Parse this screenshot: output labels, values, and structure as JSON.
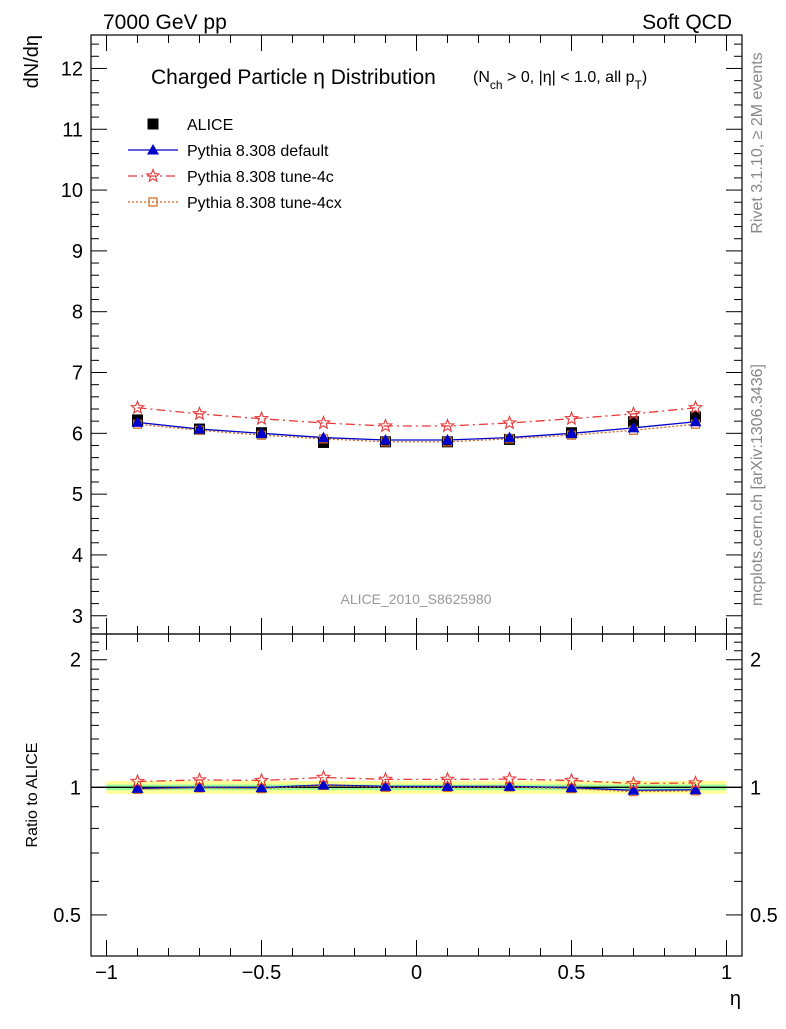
{
  "header": {
    "left": "7000 GeV pp",
    "right": "Soft QCD"
  },
  "side_labels": {
    "rivet": "Rivet 3.1.10, ≥ 2M events",
    "mcplots": "mcplots.cern.ch [arXiv:1306.3436]"
  },
  "chart_data": [
    {
      "type": "scatter",
      "title": "Charged Particle η Distribution",
      "subtitle": "(N_ch > 0, |η| < 1.0, all p_T)",
      "subtitle_parts": {
        "open": "(N",
        "ch_sub": "ch",
        "mid": " > 0, |η| < 1.0, all p",
        "t_sub": "T",
        "close": ")"
      },
      "ylabel": "dN/dη",
      "xlabel": "η",
      "analysis_label": "ALICE_2010_S8625980",
      "xlim": [
        -1.05,
        1.05
      ],
      "ylim": [
        2.7,
        12.55
      ],
      "yticks": [
        3,
        4,
        5,
        6,
        7,
        8,
        9,
        10,
        11,
        12
      ],
      "x": [
        -0.9,
        -0.7,
        -0.5,
        -0.3,
        -0.1,
        0.1,
        0.3,
        0.5,
        0.7,
        0.9
      ],
      "legend_position": "top-left",
      "series": [
        {
          "name": "ALICE",
          "style": "data",
          "color": "#000000",
          "values": [
            6.22,
            6.07,
            6.01,
            5.85,
            5.86,
            5.86,
            5.9,
            6.01,
            6.19,
            6.27
          ]
        },
        {
          "name": "Pythia 8.308 default",
          "style": "solid",
          "marker": "triangle",
          "color": "#0000cc",
          "values": [
            6.18,
            6.07,
            6.0,
            5.93,
            5.89,
            5.89,
            5.93,
            6.0,
            6.09,
            6.19
          ]
        },
        {
          "name": "Pythia 8.308 tune-4c",
          "style": "dashdot",
          "marker": "star",
          "color": "#e83a3a",
          "values": [
            6.42,
            6.32,
            6.24,
            6.17,
            6.12,
            6.12,
            6.17,
            6.24,
            6.32,
            6.42
          ]
        },
        {
          "name": "Pythia 8.308 tune-4cx",
          "style": "dotted",
          "marker": "square-open",
          "color": "#d2691e",
          "values": [
            6.15,
            6.05,
            5.97,
            5.91,
            5.86,
            5.86,
            5.91,
            5.97,
            6.05,
            6.15
          ]
        }
      ]
    },
    {
      "type": "scatter",
      "ylabel": "Ratio to ALICE",
      "xlabel": "η",
      "xlim": [
        -1.05,
        1.05
      ],
      "ylim": [
        0.4,
        2.3
      ],
      "yscale": "log",
      "yticks": [
        0.5,
        1,
        2
      ],
      "xticks": [
        -1,
        -0.5,
        0,
        0.5,
        1
      ],
      "xtick_labels": [
        "−1",
        "−0.5",
        "0",
        "0.5",
        "1"
      ],
      "x": [
        -0.9,
        -0.7,
        -0.5,
        -0.3,
        -0.1,
        0.1,
        0.3,
        0.5,
        0.7,
        0.9
      ],
      "band_colors": {
        "outer": "#ffff99",
        "inner": "#99ff99"
      },
      "band_outer": [
        [
          0.965,
          1.035
        ],
        [
          0.965,
          1.035
        ],
        [
          0.965,
          1.035
        ],
        [
          0.965,
          1.035
        ],
        [
          0.965,
          1.035
        ],
        [
          0.965,
          1.035
        ],
        [
          0.965,
          1.035
        ],
        [
          0.965,
          1.035
        ],
        [
          0.965,
          1.035
        ],
        [
          0.965,
          1.035
        ]
      ],
      "band_inner": [
        [
          0.985,
          1.015
        ],
        [
          0.985,
          1.015
        ],
        [
          0.985,
          1.015
        ],
        [
          0.985,
          1.015
        ],
        [
          0.985,
          1.015
        ],
        [
          0.985,
          1.015
        ],
        [
          0.985,
          1.015
        ],
        [
          0.985,
          1.015
        ],
        [
          0.985,
          1.015
        ],
        [
          0.985,
          1.015
        ]
      ],
      "series": [
        {
          "name": "Pythia 8.308 default",
          "style": "solid",
          "marker": "triangle",
          "color": "#0000cc",
          "values": [
            0.994,
            1.0,
            0.998,
            1.013,
            1.005,
            1.005,
            1.005,
            0.998,
            0.984,
            0.987
          ]
        },
        {
          "name": "Pythia 8.308 tune-4c",
          "style": "dashdot",
          "marker": "star",
          "color": "#e83a3a",
          "values": [
            1.032,
            1.041,
            1.038,
            1.055,
            1.044,
            1.044,
            1.046,
            1.038,
            1.021,
            1.024
          ]
        },
        {
          "name": "Pythia 8.308 tune-4cx",
          "style": "dotted",
          "marker": "square-open",
          "color": "#d2691e",
          "values": [
            0.989,
            0.997,
            0.993,
            1.01,
            1.0,
            1.0,
            1.002,
            0.993,
            0.977,
            0.981
          ]
        }
      ]
    }
  ]
}
